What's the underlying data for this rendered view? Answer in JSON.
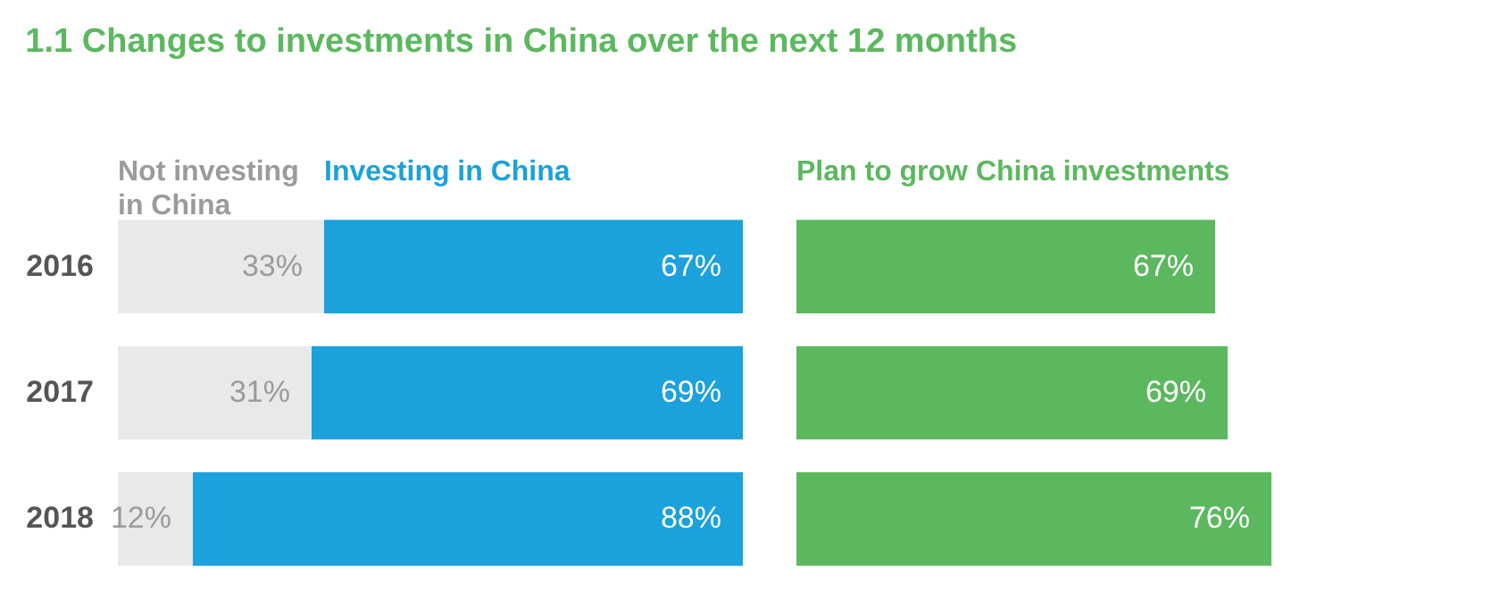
{
  "chart_data": [
    {
      "type": "bar",
      "title": "1.1  Changes to investments in China over the next 12 months",
      "orientation": "horizontal",
      "stacked": true,
      "categories": [
        "2016",
        "2017",
        "2018"
      ],
      "xlim": [
        0,
        100
      ],
      "tick_labels": "y",
      "series": [
        {
          "name": "Not investing in China",
          "color": "#e8e9eb",
          "values": [
            33,
            31,
            12
          ],
          "value_labels": [
            "33%",
            "31%",
            "12%"
          ]
        },
        {
          "name": "Investing in China",
          "color": "#1ba1db",
          "values": [
            67,
            69,
            88
          ],
          "value_labels": [
            "67%",
            "69%",
            "88%"
          ]
        }
      ]
    },
    {
      "type": "bar",
      "orientation": "horizontal",
      "categories": [
        "2016",
        "2017",
        "2018"
      ],
      "tick_labels": false,
      "series": [
        {
          "name": "Plan to grow China investments",
          "color": "#5cb85f",
          "values": [
            67,
            69,
            76
          ],
          "value_labels": [
            "67%",
            "69%",
            "76%"
          ]
        }
      ]
    }
  ]
}
